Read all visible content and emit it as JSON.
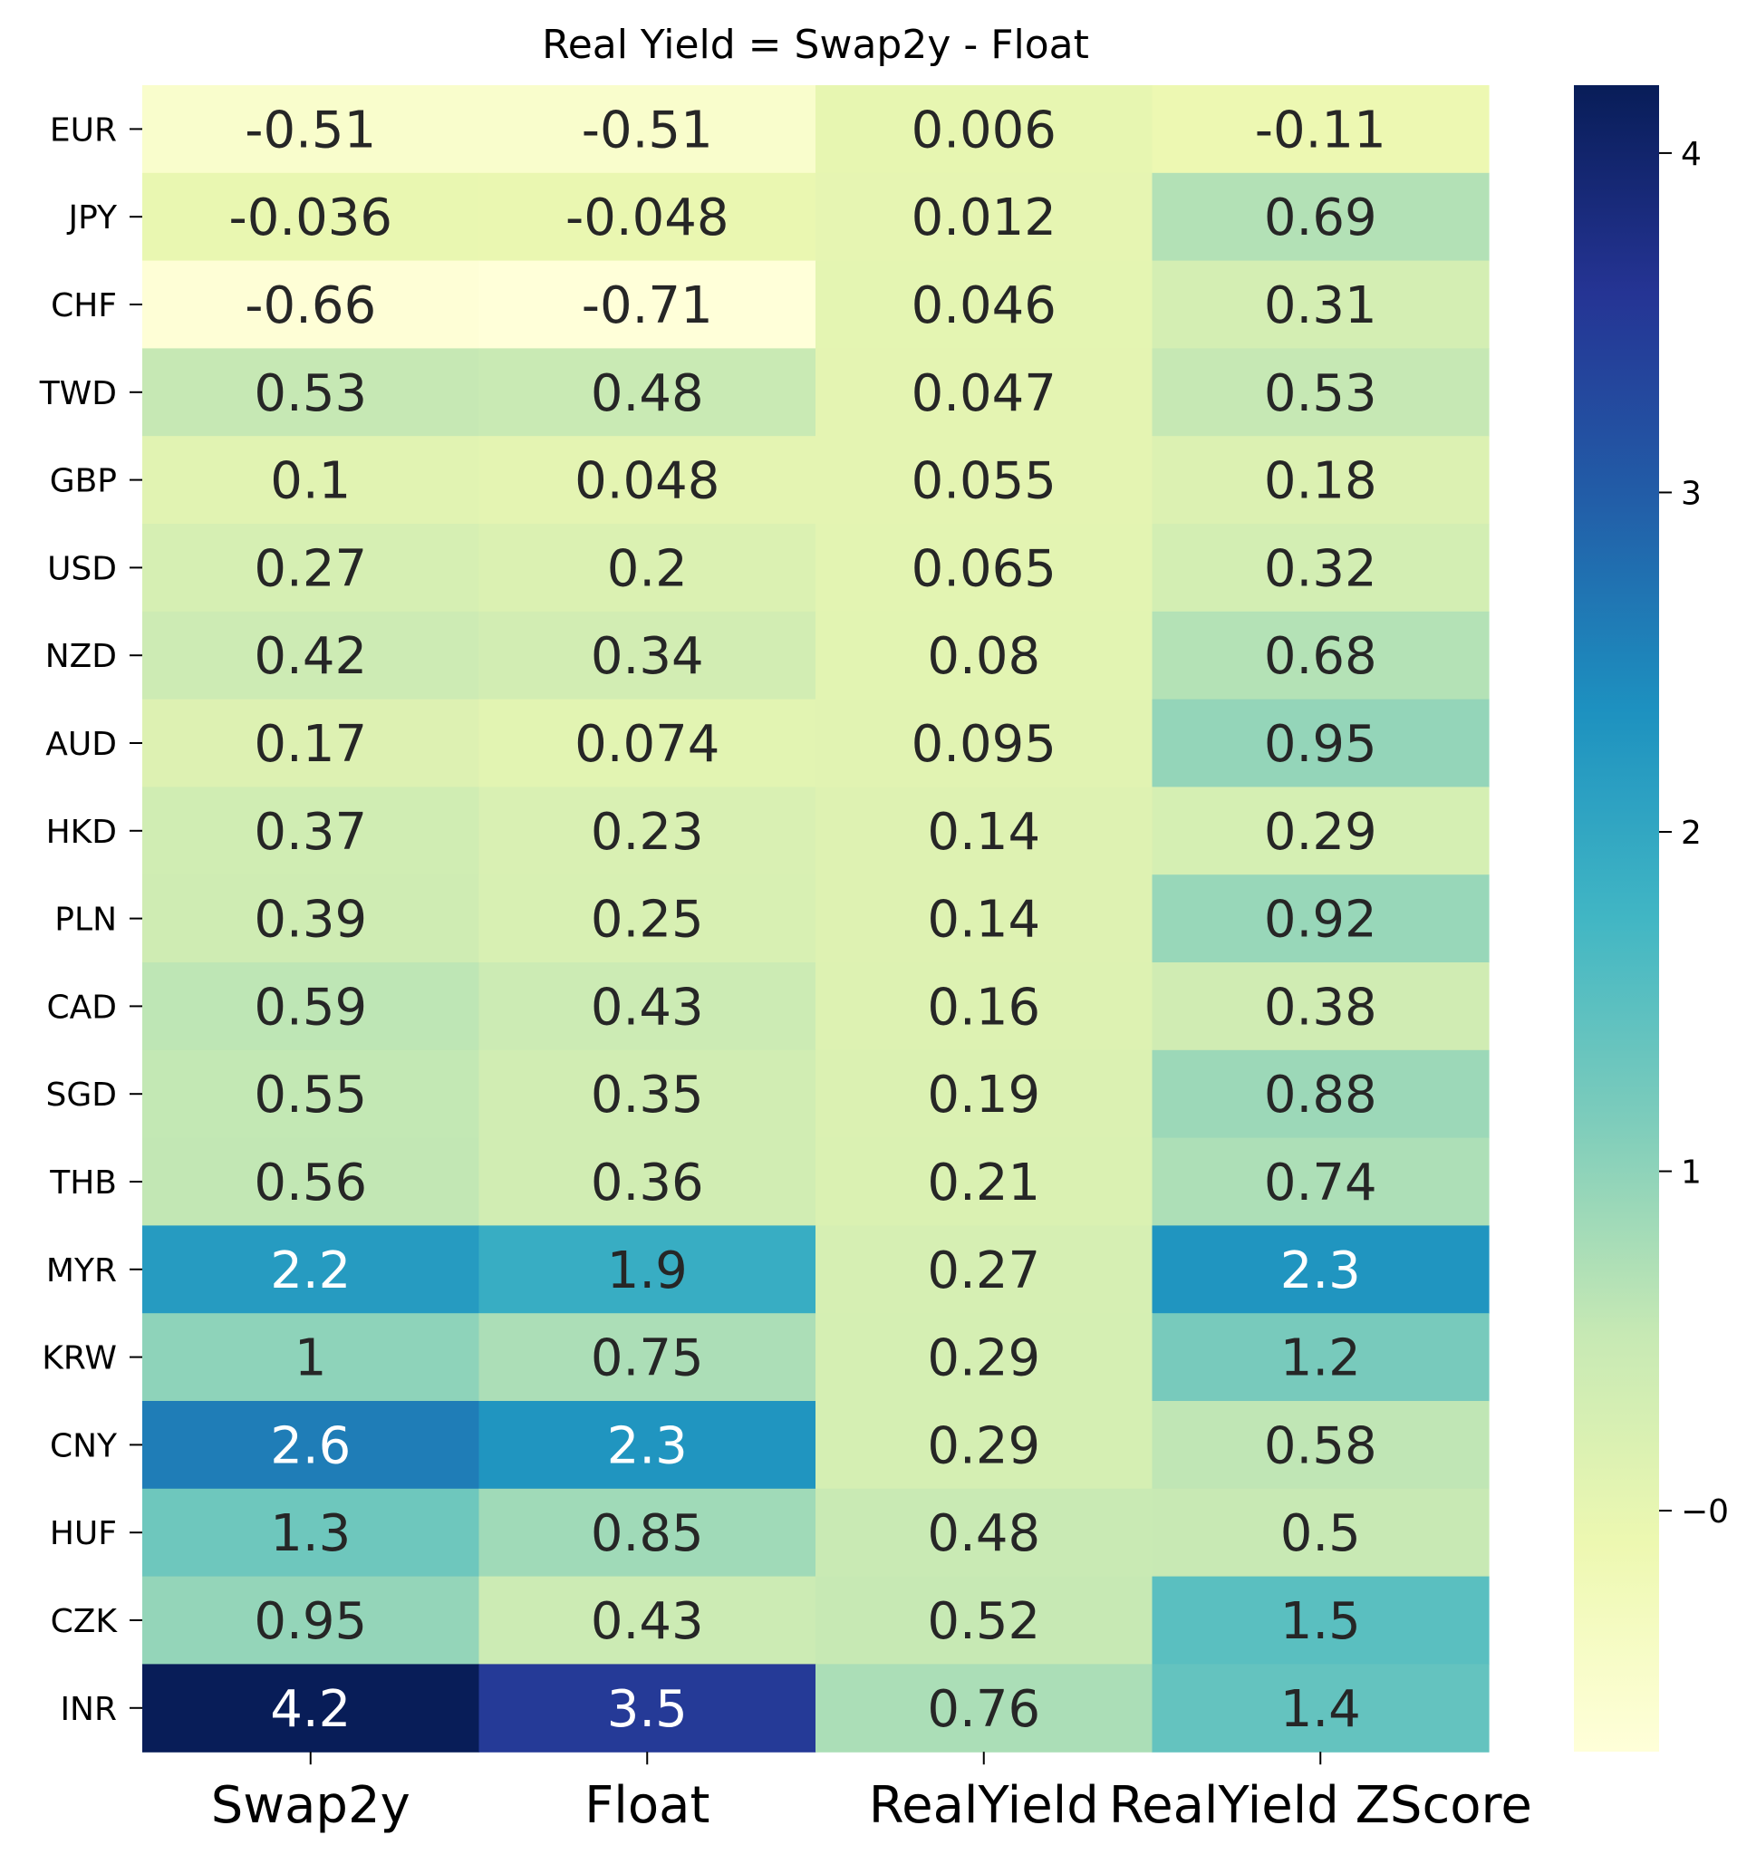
{
  "chart_data": {
    "type": "heatmap",
    "title": "Real Yield = Swap2y - Float",
    "colormap": "YlGnBu",
    "vmin": -0.71,
    "vmax": 4.2,
    "columns": [
      "Swap2y",
      "Float",
      "RealYield",
      "RealYield ZScore"
    ],
    "rows": [
      "EUR",
      "JPY",
      "CHF",
      "TWD",
      "GBP",
      "USD",
      "NZD",
      "AUD",
      "HKD",
      "PLN",
      "CAD",
      "SGD",
      "THB",
      "MYR",
      "KRW",
      "CNY",
      "HUF",
      "CZK",
      "INR"
    ],
    "values": [
      [
        -0.51,
        -0.51,
        0.006,
        -0.11
      ],
      [
        -0.036,
        -0.048,
        0.012,
        0.69
      ],
      [
        -0.66,
        -0.71,
        0.046,
        0.31
      ],
      [
        0.53,
        0.48,
        0.047,
        0.53
      ],
      [
        0.1,
        0.048,
        0.055,
        0.18
      ],
      [
        0.27,
        0.2,
        0.065,
        0.32
      ],
      [
        0.42,
        0.34,
        0.08,
        0.68
      ],
      [
        0.17,
        0.074,
        0.095,
        0.95
      ],
      [
        0.37,
        0.23,
        0.14,
        0.29
      ],
      [
        0.39,
        0.25,
        0.14,
        0.92
      ],
      [
        0.59,
        0.43,
        0.16,
        0.38
      ],
      [
        0.55,
        0.35,
        0.19,
        0.88
      ],
      [
        0.56,
        0.36,
        0.21,
        0.74
      ],
      [
        2.2,
        1.9,
        0.27,
        2.3
      ],
      [
        1,
        0.75,
        0.29,
        1.2
      ],
      [
        2.6,
        2.3,
        0.29,
        0.58
      ],
      [
        1.3,
        0.85,
        0.48,
        0.5
      ],
      [
        0.95,
        0.43,
        0.52,
        1.5
      ],
      [
        4.2,
        3.5,
        0.76,
        1.4
      ]
    ],
    "labels": [
      [
        "-0.51",
        "-0.51",
        "0.006",
        "-0.11"
      ],
      [
        "-0.036",
        "-0.048",
        "0.012",
        "0.69"
      ],
      [
        "-0.66",
        "-0.71",
        "0.046",
        "0.31"
      ],
      [
        "0.53",
        "0.48",
        "0.047",
        "0.53"
      ],
      [
        "0.1",
        "0.048",
        "0.055",
        "0.18"
      ],
      [
        "0.27",
        "0.2",
        "0.065",
        "0.32"
      ],
      [
        "0.42",
        "0.34",
        "0.08",
        "0.68"
      ],
      [
        "0.17",
        "0.074",
        "0.095",
        "0.95"
      ],
      [
        "0.37",
        "0.23",
        "0.14",
        "0.29"
      ],
      [
        "0.39",
        "0.25",
        "0.14",
        "0.92"
      ],
      [
        "0.59",
        "0.43",
        "0.16",
        "0.38"
      ],
      [
        "0.55",
        "0.35",
        "0.19",
        "0.88"
      ],
      [
        "0.56",
        "0.36",
        "0.21",
        "0.74"
      ],
      [
        "2.2",
        "1.9",
        "0.27",
        "2.3"
      ],
      [
        "1",
        "0.75",
        "0.29",
        "1.2"
      ],
      [
        "2.6",
        "2.3",
        "0.29",
        "0.58"
      ],
      [
        "1.3",
        "0.85",
        "0.48",
        "0.5"
      ],
      [
        "0.95",
        "0.43",
        "0.52",
        "1.5"
      ],
      [
        "4.2",
        "3.5",
        "0.76",
        "1.4"
      ]
    ],
    "colorbar_ticks": [
      0,
      1,
      2,
      3,
      4
    ],
    "colorbar_tick_labels": [
      "0",
      "1",
      "2",
      "3",
      "4"
    ],
    "colorbar_tick_signs": [
      "−",
      "",
      "",
      "",
      ""
    ],
    "text_color_dark": "#262626",
    "text_color_light": "#ffffff"
  }
}
